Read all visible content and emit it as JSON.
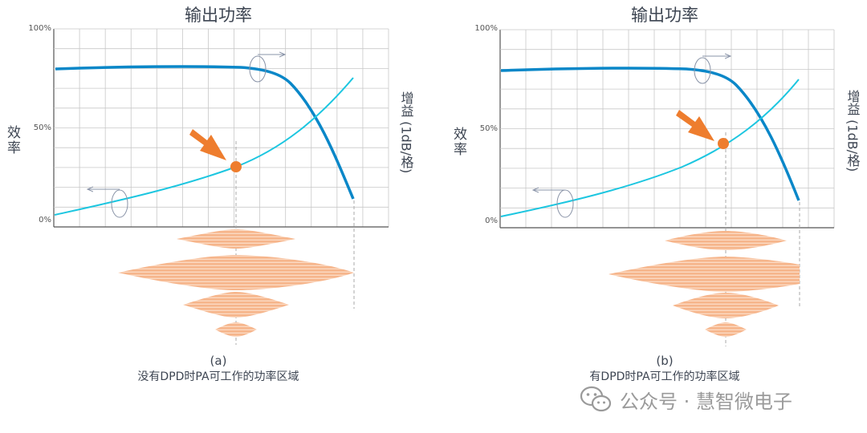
{
  "panels": [
    {
      "title": "输出功率",
      "y_axis_label": "效率",
      "right_axis_label": "增益 (1dB/格)",
      "y_ticks": [
        "100%",
        "50%",
        "0%"
      ],
      "caption_letter": "(a)",
      "caption_text": "没有DPD时PA可工作的功率区域",
      "operating_point_efficiency": 0.29
    },
    {
      "title": "输出功率",
      "y_axis_label": "效率",
      "right_axis_label": "增益 (1dB/格)",
      "y_ticks": [
        "100%",
        "50%",
        "0%"
      ],
      "caption_letter": "(b)",
      "caption_text": "有DPD时PA可工作的功率区域",
      "operating_point_efficiency": 0.42
    }
  ],
  "watermark": {
    "text": "公众号 · 慧智微电子",
    "icon": "wechat-icon"
  },
  "colors": {
    "gain_curve": "#0a87c8",
    "efficiency_curve": "#1cc6e0",
    "arrow": "#ee7d2e",
    "point": "#ee7d2e",
    "envelope": "#f6b58b",
    "grid": "#c8c8c8",
    "axis": "#555555"
  }
}
